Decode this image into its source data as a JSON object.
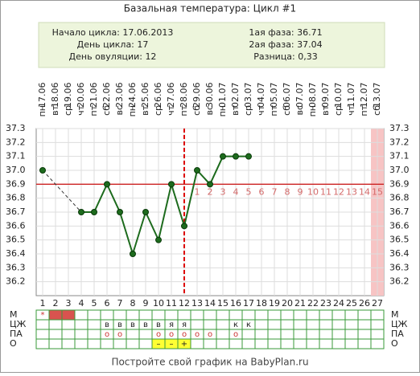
{
  "chart_data": {
    "type": "line",
    "title": "Базальная температура: Цикл #1",
    "info": {
      "left": [
        "Начало цикла: 17.06.2013",
        "День цикла: 17",
        "День овуляции: 12"
      ],
      "right": [
        "1ая фаза: 36.71",
        "2ая фаза: 37.04",
        "Разница: 0,33"
      ]
    },
    "x": [
      1,
      2,
      3,
      4,
      5,
      6,
      7,
      8,
      9,
      10,
      11,
      12,
      13,
      14,
      15,
      16,
      17,
      18,
      19,
      20,
      21,
      22,
      23,
      24,
      25,
      26,
      27
    ],
    "weekdays": [
      "пн",
      "вт",
      "ср",
      "чт",
      "пт",
      "сб",
      "вс",
      "пн",
      "вт",
      "ср",
      "чт",
      "пт",
      "сб",
      "вс",
      "пн",
      "вт",
      "ср",
      "чт",
      "пт",
      "сб",
      "вс",
      "пн",
      "вт",
      "ср",
      "чт",
      "пт",
      "сб"
    ],
    "dates": [
      "17.06",
      "18.06",
      "19.06",
      "20.06",
      "21.06",
      "22.06",
      "23.06",
      "24.06",
      "25.06",
      "26.06",
      "27.06",
      "28.06",
      "29.06",
      "30.06",
      "01.07",
      "02.07",
      "03.07",
      "04.07",
      "05.07",
      "06.07",
      "07.07",
      "08.07",
      "09.07",
      "10.07",
      "11.07",
      "12.07",
      "13.07"
    ],
    "values": [
      37.0,
      null,
      null,
      36.7,
      36.7,
      36.9,
      36.7,
      36.4,
      36.7,
      36.5,
      36.9,
      36.6,
      37.0,
      36.9,
      37.1,
      37.1,
      37.1,
      null,
      null,
      null,
      null,
      null,
      null,
      null,
      null,
      null,
      null
    ],
    "color": "#1d6b1d",
    "ylim": [
      36.1,
      37.3
    ],
    "yticks": [
      36.2,
      36.3,
      36.4,
      36.5,
      36.6,
      36.7,
      36.8,
      36.9,
      {
        "value": 37.0,
        "label": "37.0"
      },
      37.1,
      37.2,
      37.3
    ],
    "grid": true,
    "coverline": 36.9,
    "ovulation_day": 12,
    "phase2_labels": [
      1,
      2,
      3,
      4,
      5,
      6,
      7,
      8,
      9,
      10,
      11,
      12,
      13,
      14,
      15
    ],
    "highlighted_days": [
      27
    ],
    "table": {
      "rows": [
        {
          "label": "М",
          "fill": "#d9534f",
          "fill_days": [
            2,
            3
          ],
          "cells": [
            "*",
            null,
            null,
            null,
            null,
            null,
            null,
            null,
            null,
            null,
            null,
            null,
            null,
            null,
            null,
            null,
            null,
            null,
            null,
            null,
            null,
            null,
            null,
            null,
            null,
            null,
            null
          ]
        },
        {
          "label": "ЦЖ",
          "cells": [
            null,
            null,
            null,
            null,
            null,
            "в",
            "в",
            "в",
            "в",
            "в",
            "я",
            "я",
            null,
            null,
            null,
            "к",
            "к",
            null,
            null,
            null,
            null,
            null,
            null,
            null,
            null,
            null,
            null
          ]
        },
        {
          "label": "ПА",
          "cells": [
            null,
            null,
            null,
            null,
            null,
            "о",
            "о",
            null,
            null,
            "о",
            "о",
            "о",
            "о",
            "о",
            null,
            "о",
            null,
            null,
            null,
            null,
            null,
            null,
            null,
            null,
            null,
            null,
            null
          ]
        },
        {
          "label": "О",
          "fill": "#ffff33",
          "fill_days": [
            10,
            11,
            12
          ],
          "cells": [
            null,
            null,
            null,
            null,
            null,
            null,
            null,
            null,
            null,
            "–",
            "–",
            "+",
            null,
            null,
            null,
            null,
            null,
            null,
            null,
            null,
            null,
            null,
            null,
            null,
            null,
            null,
            null
          ]
        }
      ]
    },
    "footer": "Постройте свой график на BabyPlan.ru"
  }
}
